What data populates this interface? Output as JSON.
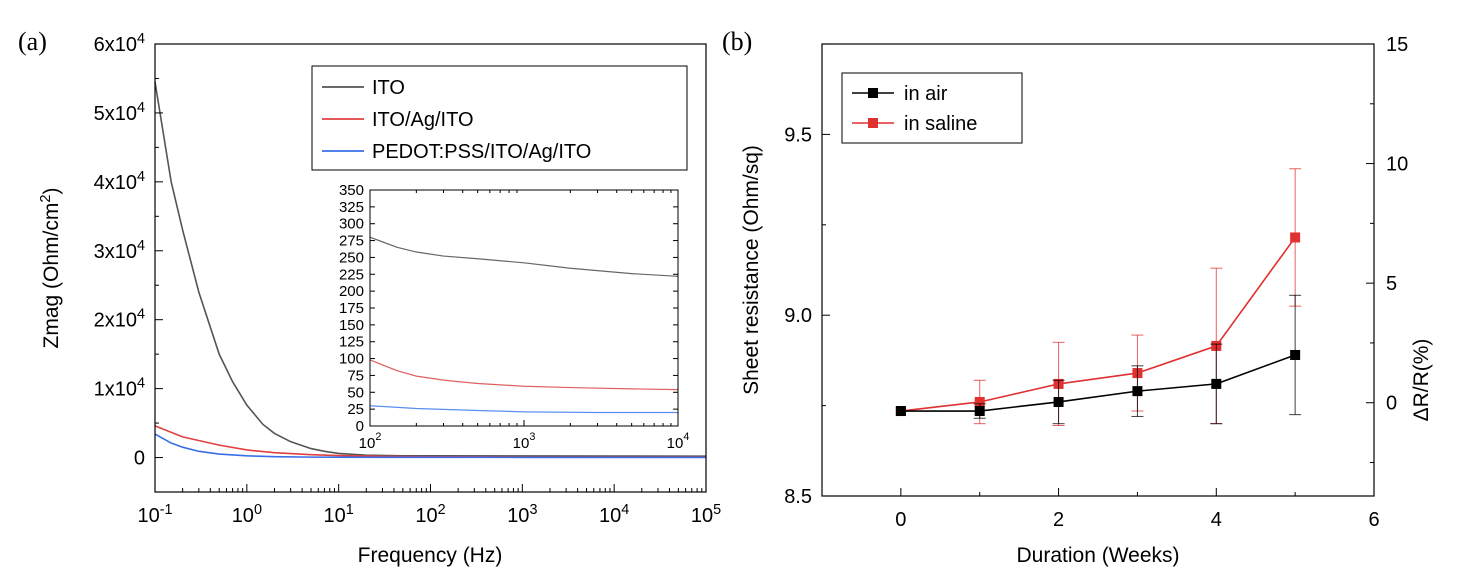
{
  "panels": {
    "a": "(a)",
    "b": "(b)"
  },
  "chart_data": [
    {
      "type": "line",
      "id": "a",
      "xlabel": "Frequency (Hz)",
      "ylabel": "Zmag (Ohm/cm²)",
      "xscale": "log",
      "xlim": [
        0.1,
        100000
      ],
      "ylim": [
        -5000,
        60000
      ],
      "x_ticks": [
        {
          "v": 0.1,
          "base": "10",
          "exp": "-1"
        },
        {
          "v": 1,
          "base": "10",
          "exp": "0"
        },
        {
          "v": 10,
          "base": "10",
          "exp": "1"
        },
        {
          "v": 100,
          "base": "10",
          "exp": "2"
        },
        {
          "v": 1000,
          "base": "10",
          "exp": "3"
        },
        {
          "v": 10000,
          "base": "10",
          "exp": "4"
        },
        {
          "v": 100000,
          "base": "10",
          "exp": "5"
        }
      ],
      "y_ticks": [
        {
          "v": 0,
          "base": "0",
          "exp": ""
        },
        {
          "v": 10000,
          "base": "1x10",
          "exp": "4"
        },
        {
          "v": 20000,
          "base": "2x10",
          "exp": "4"
        },
        {
          "v": 30000,
          "base": "3x10",
          "exp": "4"
        },
        {
          "v": 40000,
          "base": "4x10",
          "exp": "4"
        },
        {
          "v": 50000,
          "base": "5x10",
          "exp": "4"
        },
        {
          "v": 60000,
          "base": "6x10",
          "exp": "4"
        }
      ],
      "legend": "top-right",
      "series": [
        {
          "name": "ITO",
          "color": "#555555",
          "x": [
            0.1,
            0.15,
            0.2,
            0.3,
            0.5,
            0.7,
            1,
            1.5,
            2,
            3,
            5,
            7,
            10,
            20,
            50,
            100,
            1000,
            10000,
            100000
          ],
          "y": [
            54500,
            40000,
            33000,
            24000,
            15000,
            11000,
            7600,
            4800,
            3500,
            2300,
            1300,
            900,
            600,
            350,
            260,
            250,
            240,
            220,
            200
          ]
        },
        {
          "name": "ITO/Ag/ITO",
          "color": "#e04040",
          "x": [
            0.1,
            0.2,
            0.5,
            1,
            2,
            5,
            10,
            50,
            100,
            1000,
            10000,
            100000
          ],
          "y": [
            4600,
            3000,
            1800,
            1100,
            700,
            420,
            280,
            140,
            100,
            60,
            55,
            50
          ]
        },
        {
          "name": "PEDOT:PSS/ITO/Ag/ITO",
          "color": "#3a6ee8",
          "x": [
            0.1,
            0.15,
            0.2,
            0.3,
            0.5,
            1,
            2,
            5,
            10,
            100,
            1000,
            10000,
            100000
          ],
          "y": [
            3400,
            2100,
            1500,
            900,
            500,
            250,
            120,
            60,
            45,
            30,
            22,
            20,
            18
          ]
        }
      ],
      "inset": {
        "xscale": "log",
        "xlim": [
          100,
          10000
        ],
        "ylim": [
          0,
          350
        ],
        "x_ticks": [
          {
            "v": 100,
            "base": "10",
            "exp": "2"
          },
          {
            "v": 1000,
            "base": "10",
            "exp": "3"
          },
          {
            "v": 10000,
            "base": "10",
            "exp": "4"
          }
        ],
        "y_ticks": [
          "0",
          "25",
          "50",
          "75",
          "100",
          "125",
          "150",
          "175",
          "200",
          "225",
          "250",
          "275",
          "300",
          "325",
          "350"
        ],
        "series": [
          {
            "name": "ITO",
            "color": "#666666",
            "x": [
              100,
              150,
              200,
              300,
              500,
              1000,
              2000,
              5000,
              10000
            ],
            "y": [
              280,
              265,
              258,
              252,
              248,
              242,
              234,
              226,
              222
            ]
          },
          {
            "name": "ITO/Ag/ITO",
            "color": "#e06060",
            "x": [
              100,
              150,
              200,
              300,
              500,
              1000,
              2000,
              5000,
              10000
            ],
            "y": [
              98,
              82,
              74,
              68,
              63,
              59,
              57,
              55,
              54
            ]
          },
          {
            "name": "PEDOT:PSS/ITO/Ag/ITO",
            "color": "#5a8ef0",
            "x": [
              100,
              200,
              500,
              1000,
              3000,
              10000
            ],
            "y": [
              30,
              26,
              23,
              21,
              20,
              20
            ]
          }
        ]
      }
    },
    {
      "type": "line",
      "id": "b",
      "xlabel": "Duration (Weeks)",
      "ylabel": "Sheet resistance (Ohm/sq)",
      "y2label": "ΔR/R(%)",
      "xlim": [
        -1,
        6
      ],
      "ylim": [
        8.5,
        9.75
      ],
      "y2lim": [
        -3.9,
        15
      ],
      "x_ticks": [
        "0",
        "2",
        "4",
        "6"
      ],
      "y_ticks": [
        "8.5",
        "9.0",
        "9.5"
      ],
      "y2_ticks": [
        "0",
        "5",
        "10",
        "15"
      ],
      "legend": "top-left",
      "series": [
        {
          "name": "in air",
          "color": "#000000",
          "x": [
            0,
            1,
            2,
            3,
            4,
            5
          ],
          "y": [
            8.735,
            8.735,
            8.76,
            8.79,
            8.81,
            8.89
          ],
          "err": [
            0,
            0.02,
            0.06,
            0.07,
            0.11,
            0.165
          ]
        },
        {
          "name": "in saline",
          "color": "#e03030",
          "x": [
            0,
            1,
            2,
            3,
            4,
            5
          ],
          "y": [
            8.735,
            8.76,
            8.81,
            8.84,
            8.915,
            9.215
          ],
          "err": [
            0,
            0.06,
            0.115,
            0.105,
            0.215,
            0.19
          ]
        }
      ]
    }
  ]
}
